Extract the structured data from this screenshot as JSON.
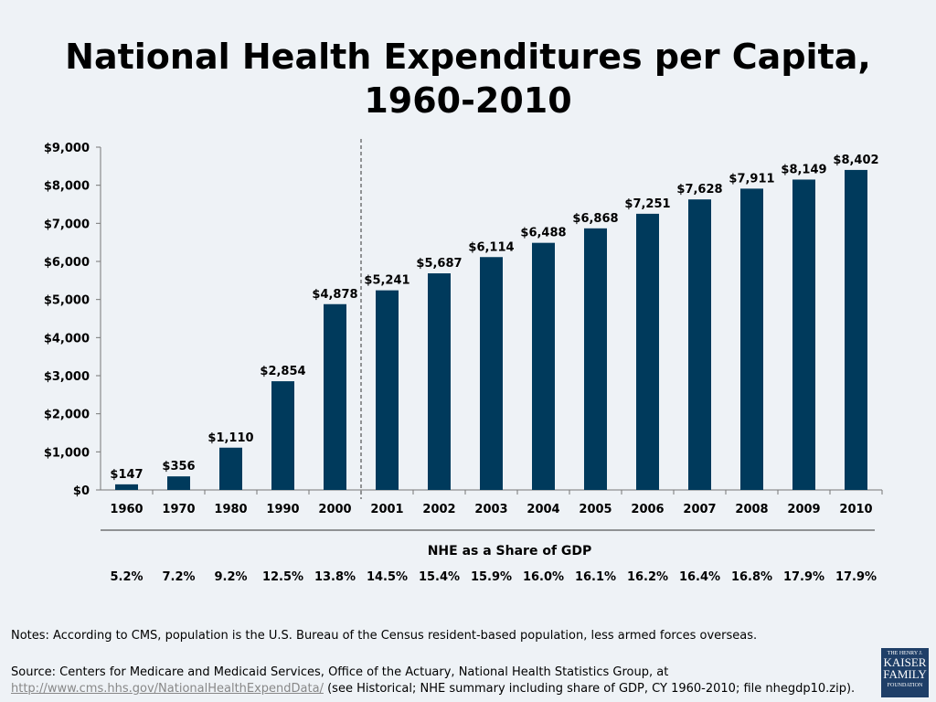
{
  "title_line1": "National Health Expenditures per Capita,",
  "title_line2": "1960-2010",
  "chart_data": {
    "type": "bar",
    "title": "National Health Expenditures per Capita, 1960-2010",
    "categories": [
      "1960",
      "1970",
      "1980",
      "1990",
      "2000",
      "2001",
      "2002",
      "2003",
      "2004",
      "2005",
      "2006",
      "2007",
      "2008",
      "2009",
      "2010"
    ],
    "values": [
      147,
      356,
      1110,
      2854,
      4878,
      5241,
      5687,
      6114,
      6488,
      6868,
      7251,
      7628,
      7911,
      8149,
      8402
    ],
    "data_labels": [
      "$147",
      "$356",
      "$1,110",
      "$2,854",
      "$4,878",
      "$5,241",
      "$5,687",
      "$6,114",
      "$6,488",
      "$6,868",
      "$7,251",
      "$7,628",
      "$7,911",
      "$8,149",
      "$8,402"
    ],
    "ylim": [
      0,
      9000
    ],
    "yticks": [
      "$0",
      "$1,000",
      "$2,000",
      "$3,000",
      "$4,000",
      "$5,000",
      "$6,000",
      "$7,000",
      "$8,000",
      "$9,000"
    ],
    "grid": false,
    "divider_after": "2000",
    "bar_color": "#003a5c",
    "gdp_share": {
      "label": "NHE as a Share of GDP",
      "values": [
        "5.2%",
        "7.2%",
        "9.2%",
        "12.5%",
        "13.8%",
        "14.5%",
        "15.4%",
        "15.9%",
        "16.0%",
        "16.1%",
        "16.2%",
        "16.4%",
        "16.8%",
        "17.9%",
        "17.9%"
      ]
    }
  },
  "notes": "Notes: According to CMS, population is the U.S. Bureau of the Census resident-based population, less armed forces overseas.",
  "source_prefix": "Source: Centers for Medicare and Medicaid Services, Office of the Actuary, National Health Statistics Group, at",
  "source_link": "http://www.cms.hhs.gov/NationalHealthExpendData/",
  "source_suffix": " (see Historical; NHE summary including share of GDP, CY 1960-2010; file nhegdp10.zip).",
  "logo": {
    "line1": "THE HENRY J.",
    "line2": "KAISER",
    "line3": "FAMILY",
    "line4": "FOUNDATION"
  }
}
